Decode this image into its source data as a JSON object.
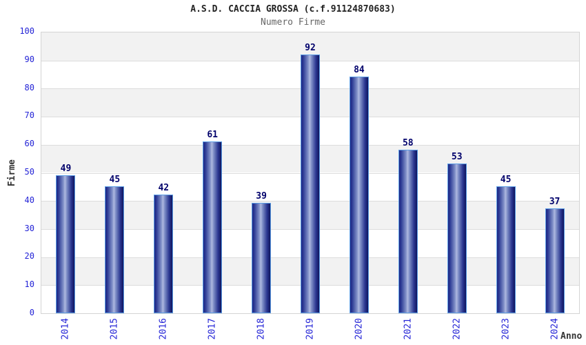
{
  "chart_data": {
    "type": "bar",
    "title": "A.S.D. CACCIA GROSSA (c.f.91124870683)",
    "subtitle": "Numero Firme",
    "xlabel": "Anno",
    "ylabel": "Firme",
    "categories": [
      "2014",
      "2015",
      "2016",
      "2017",
      "2018",
      "2019",
      "2020",
      "2021",
      "2022",
      "2023",
      "2024"
    ],
    "values": [
      49,
      45,
      42,
      61,
      39,
      92,
      84,
      58,
      53,
      45,
      37
    ],
    "ylim": [
      0,
      100
    ],
    "ytick_step": 10,
    "grid": true,
    "legend": "none",
    "colors": {
      "band_gray": "#f2f2f2",
      "band_white": "#ffffff",
      "gridline": "#dcdcdc",
      "plot_border": "#d4d4d4",
      "bar_border": "#5b9de5",
      "bar_dark": "#1b2583",
      "bar_light": "#aeb8e0",
      "tick_label": "#2323d6",
      "value_label": "#00006b",
      "title_color": "#222222",
      "subtitle_color": "#666666",
      "axis_title_color": "#333333"
    }
  }
}
